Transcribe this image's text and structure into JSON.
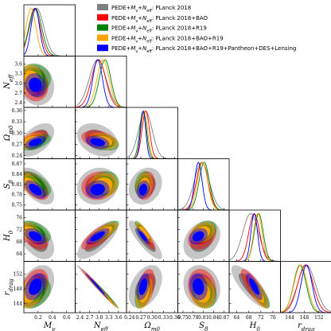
{
  "chart_data": {
    "type": "triangle-posterior",
    "legend_placement": "top-right",
    "series": [
      {
        "name": "PEDE+M_ν+N_eff: PLanck 2018",
        "color": "#808080",
        "mean": {
          "Mnu": 0.18,
          "Neff": 2.95,
          "Om": 0.282,
          "S8": 0.805,
          "H0": 68.6,
          "rdrag": 148.6
        },
        "sd": {
          "Mnu": 0.1,
          "Neff": 0.26,
          "Om": 0.018,
          "S8": 0.022,
          "H0": 2.6,
          "rdrag": 2.4
        }
      },
      {
        "name": "PEDE+M_ν+N_eff: PLanck 2018+BAO",
        "color": "#ff0000",
        "mean": {
          "Mnu": 0.15,
          "Neff": 2.98,
          "Om": 0.283,
          "S8": 0.806,
          "H0": 69.8,
          "rdrag": 148.3
        },
        "sd": {
          "Mnu": 0.08,
          "Neff": 0.22,
          "Om": 0.01,
          "S8": 0.017,
          "H0": 1.8,
          "rdrag": 2.1
        }
      },
      {
        "name": "PEDE+M_ν+N_eff: PLanck 2018+R19",
        "color": "#008000",
        "mean": {
          "Mnu": 0.16,
          "Neff": 3.18,
          "Om": 0.276,
          "S8": 0.812,
          "H0": 71.3,
          "rdrag": 146.8
        },
        "sd": {
          "Mnu": 0.09,
          "Neff": 0.18,
          "Om": 0.009,
          "S8": 0.015,
          "H0": 1.5,
          "rdrag": 1.7
        }
      },
      {
        "name": "PEDE+M_ν+N_eff: PLanck 2018+BAO+R19",
        "color": "#ffa500",
        "mean": {
          "Mnu": 0.1,
          "Neff": 3.12,
          "Om": 0.279,
          "S8": 0.807,
          "H0": 71.0,
          "rdrag": 147.0
        },
        "sd": {
          "Mnu": 0.07,
          "Neff": 0.19,
          "Om": 0.009,
          "S8": 0.015,
          "H0": 1.4,
          "rdrag": 1.8
        }
      },
      {
        "name": "PEDE+M_ν+N_eff: PLanck 2018+BAO+R19+Pantheon+DES+Lensing",
        "color": "#0000ff",
        "mean": {
          "Mnu": 0.16,
          "Neff": 2.95,
          "Om": 0.276,
          "S8": 0.795,
          "H0": 69.8,
          "rdrag": 148.6
        },
        "sd": {
          "Mnu": 0.06,
          "Neff": 0.15,
          "Om": 0.007,
          "S8": 0.011,
          "H0": 1.1,
          "rdrag": 1.5
        }
      }
    ],
    "params": [
      {
        "key": "Mnu",
        "label": "M_ν",
        "range": [
          0.0,
          0.72
        ],
        "ticks": [
          0.2,
          0.4,
          0.6
        ],
        "tick_labels": [
          "0.2",
          "0.4",
          "0.6"
        ]
      },
      {
        "key": "Neff",
        "label": "N_eff",
        "range": [
          2.25,
          3.85
        ],
        "ticks": [
          2.4,
          2.7,
          3.0,
          3.3,
          3.6
        ],
        "tick_labels": [
          "2.4",
          "2.7",
          "3.0",
          "3.3",
          "3.6"
        ]
      },
      {
        "key": "Om",
        "label": "Ω_m0",
        "range": [
          0.232,
          0.368
        ],
        "ticks": [
          0.24,
          0.27,
          0.3,
          0.33,
          0.36
        ],
        "tick_labels": [
          "0.24",
          "0.27",
          "0.30",
          "0.33",
          "0.36"
        ]
      },
      {
        "key": "S8",
        "label": "S_8",
        "range": [
          0.735,
          0.885
        ],
        "ticks": [
          0.75,
          0.78,
          0.81,
          0.84,
          0.87
        ],
        "tick_labels": [
          "0.75",
          "0.78",
          "0.81",
          "0.84",
          "0.87"
        ]
      },
      {
        "key": "H0",
        "label": "H_0",
        "range": [
          61.5,
          78.5
        ],
        "ticks": [
          64,
          68,
          72,
          76
        ],
        "tick_labels": [
          "64",
          "68",
          "72",
          "76"
        ]
      },
      {
        "key": "rdrag",
        "label": "r_drag",
        "range": [
          141.5,
          155.5
        ],
        "ticks": [
          144,
          148,
          152
        ],
        "tick_labels": [
          "144",
          "148",
          "152"
        ]
      }
    ],
    "correlations": {
      "Mnu|Neff": -0.1,
      "Mnu|Om": 0.5,
      "Mnu|S8": -0.55,
      "Mnu|H0": -0.45,
      "Mnu|rdrag": 0.35,
      "Neff|Om": -0.3,
      "Neff|S8": 0.1,
      "Neff|H0": 0.75,
      "Neff|rdrag": -0.99,
      "Om|S8": 0.2,
      "Om|H0": -0.85,
      "Om|rdrag": 0.4,
      "S8|H0": 0.3,
      "S8|rdrag": -0.15,
      "H0|rdrag": -0.8
    }
  }
}
